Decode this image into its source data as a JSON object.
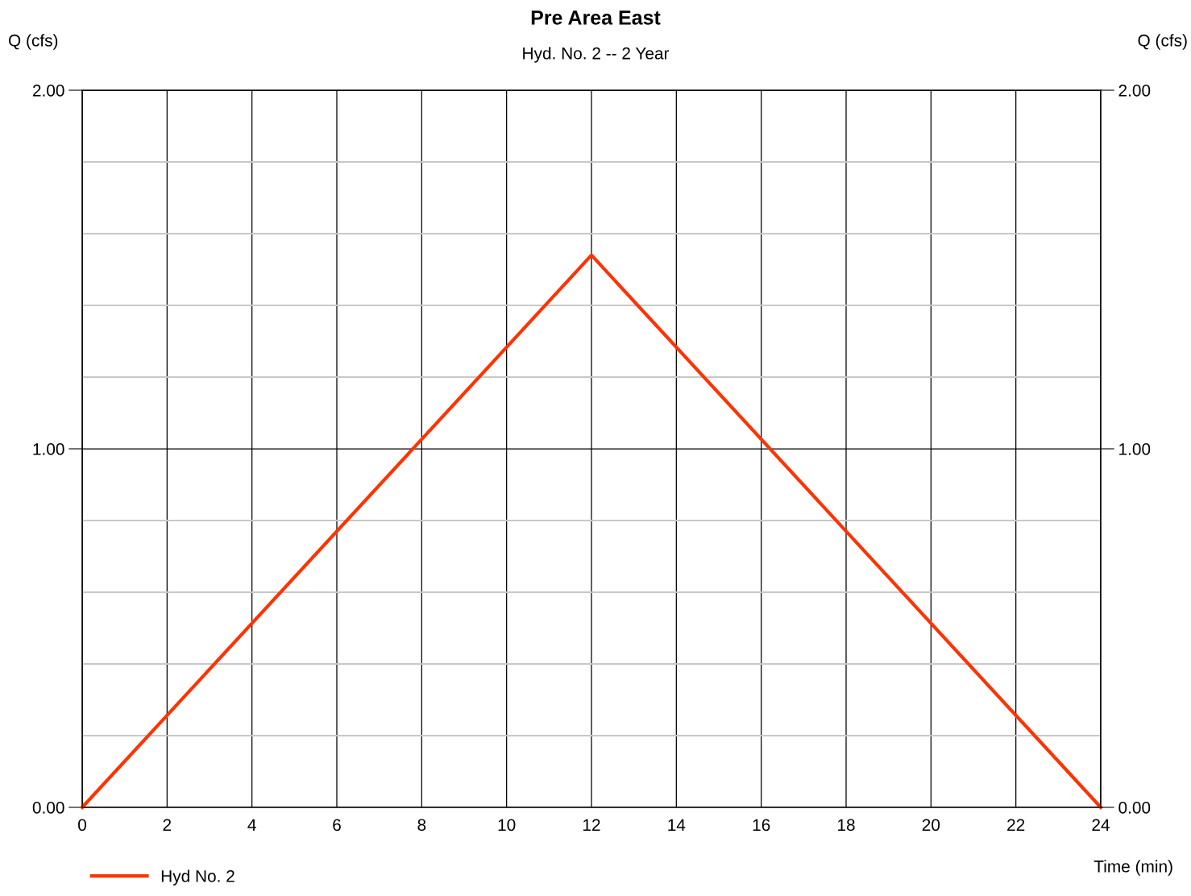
{
  "chart_data": {
    "type": "line",
    "title": "Pre Area East",
    "subtitle": "Hyd. No. 2 -- 2 Year",
    "xlabel": "Time (min)",
    "ylabel": "Q (cfs)",
    "y2label": "Q (cfs)",
    "x": [
      0,
      12,
      24
    ],
    "series": [
      {
        "name": "Hyd No. 2",
        "color": "#ff3300",
        "values": [
          0,
          1.54,
          0
        ]
      }
    ],
    "xlim": [
      0,
      24
    ],
    "xticks": [
      0,
      2,
      4,
      6,
      8,
      10,
      12,
      14,
      16,
      18,
      20,
      22,
      24
    ],
    "ylim": [
      0,
      2
    ],
    "yticks": [
      {
        "value": 0,
        "label": "0.00"
      },
      {
        "value": 0.2,
        "label": null
      },
      {
        "value": 0.4,
        "label": null
      },
      {
        "value": 0.6,
        "label": null
      },
      {
        "value": 0.8,
        "label": null
      },
      {
        "value": 1,
        "label": "1.00"
      },
      {
        "value": 1.2,
        "label": null
      },
      {
        "value": 1.4,
        "label": null
      },
      {
        "value": 1.6,
        "label": null
      },
      {
        "value": 1.8,
        "label": null
      },
      {
        "value": 2,
        "label": "2.00"
      }
    ],
    "y2lim": [
      0,
      2
    ],
    "y2ticks": [
      {
        "value": 0,
        "label": "0.00"
      },
      {
        "value": 1,
        "label": "1.00"
      },
      {
        "value": 2,
        "label": "2.00"
      }
    ],
    "grid": true,
    "legend": "bottom left",
    "marker": "none",
    "line_style": "solid"
  }
}
